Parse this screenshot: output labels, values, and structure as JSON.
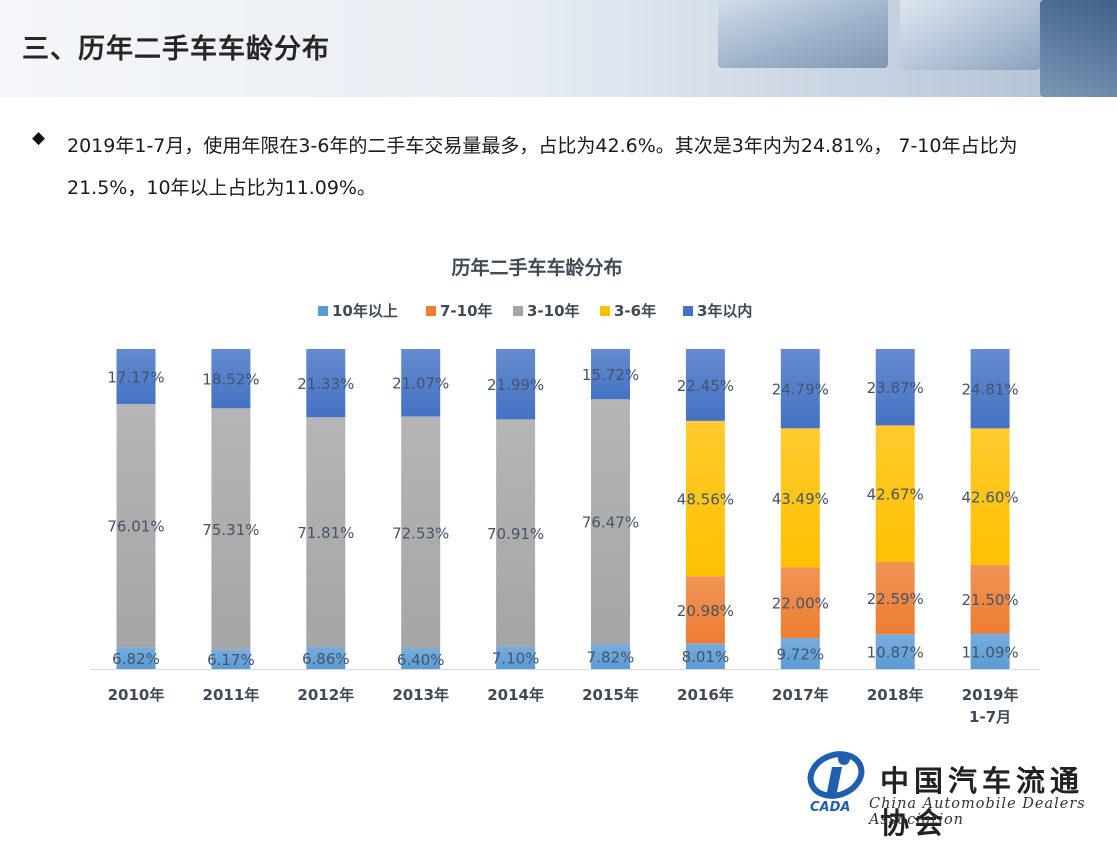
{
  "slide": {
    "title": "三、历年二手车车龄分布",
    "bullet": "◆",
    "summary": "2019年1-7月，使用年限在3-6年的二手车交易量最多，占比为42.6%。其次是3年内为24.81%， 7-10年占比为21.5%，10年以上占比为11.09%。"
  },
  "logo": {
    "cn": "中国汽车流通协会",
    "en": "China Automobile Dealers Association",
    "mark": "CADA"
  },
  "chart_data": {
    "type": "bar",
    "stacked": true,
    "title": "历年二手车车龄分布",
    "legend_position": "top",
    "grid": false,
    "ylim": [
      0,
      100
    ],
    "categories": [
      [
        "2010年"
      ],
      [
        "2011年"
      ],
      [
        "2012年"
      ],
      [
        "2013年"
      ],
      [
        "2014年"
      ],
      [
        "2015年"
      ],
      [
        "2016年"
      ],
      [
        "2017年"
      ],
      [
        "2018年"
      ],
      [
        "2019年",
        "1-7月"
      ]
    ],
    "series": [
      {
        "name": "10年以上",
        "color": "#5b9bd5",
        "values": [
          6.82,
          6.17,
          6.86,
          6.4,
          7.1,
          7.82,
          8.01,
          9.72,
          10.87,
          11.09
        ]
      },
      {
        "name": "7-10年",
        "color": "#ed7d31",
        "values": [
          null,
          null,
          null,
          null,
          null,
          null,
          20.98,
          22.0,
          22.59,
          21.5
        ]
      },
      {
        "name": "3-10年",
        "color": "#a5a5a5",
        "values": [
          76.01,
          75.31,
          71.81,
          72.53,
          70.91,
          76.47,
          null,
          null,
          null,
          null
        ]
      },
      {
        "name": "3-6年",
        "color": "#ffc000",
        "values": [
          null,
          null,
          null,
          null,
          null,
          null,
          48.56,
          43.49,
          42.67,
          42.6
        ]
      },
      {
        "name": "3年以内",
        "color": "#4472c4",
        "values": [
          17.17,
          18.52,
          21.33,
          21.07,
          21.99,
          15.72,
          22.45,
          24.79,
          23.87,
          24.81
        ]
      }
    ],
    "legend": [
      "10年以上",
      "7-10年",
      "3-10年",
      "3-6年",
      "3年以内"
    ]
  }
}
